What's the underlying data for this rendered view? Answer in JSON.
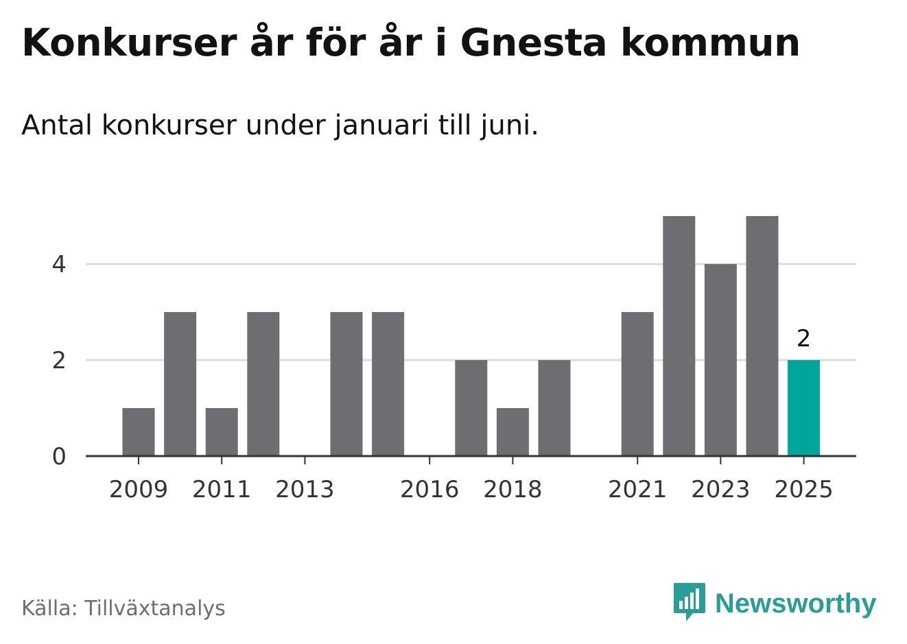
{
  "header": {
    "title": "Konkurser år för år i Gnesta kommun",
    "subtitle": "Antal konkurser under januari till juni."
  },
  "footer": {
    "source": "Källa: Tillväxtanalys",
    "brand": "Newsworthy",
    "brand_icon": "newsworthy-logo-icon"
  },
  "colors": {
    "bar": "#6e6d72",
    "highlight": "#00a59b",
    "grid": "#dddddd",
    "axis": "#333333",
    "brand": "#2a9d96"
  },
  "chart_data": {
    "type": "bar",
    "x": [
      2009,
      2010,
      2011,
      2012,
      2013,
      2014,
      2015,
      2016,
      2017,
      2018,
      2019,
      2020,
      2021,
      2022,
      2023,
      2024,
      2025
    ],
    "values": [
      1,
      3,
      1,
      3,
      0,
      3,
      3,
      0,
      2,
      1,
      2,
      0,
      3,
      5,
      4,
      5,
      2
    ],
    "x_tick_labels": [
      "2009",
      "2011",
      "2013",
      "2016",
      "2018",
      "2021",
      "2023",
      "2025"
    ],
    "y_ticks": [
      0,
      2,
      4
    ],
    "ylim": [
      0,
      5
    ],
    "highlight": {
      "x": 2025,
      "label": "2"
    },
    "grid": true,
    "title": "Konkurser år för år i Gnesta kommun",
    "xlabel": "",
    "ylabel": ""
  }
}
